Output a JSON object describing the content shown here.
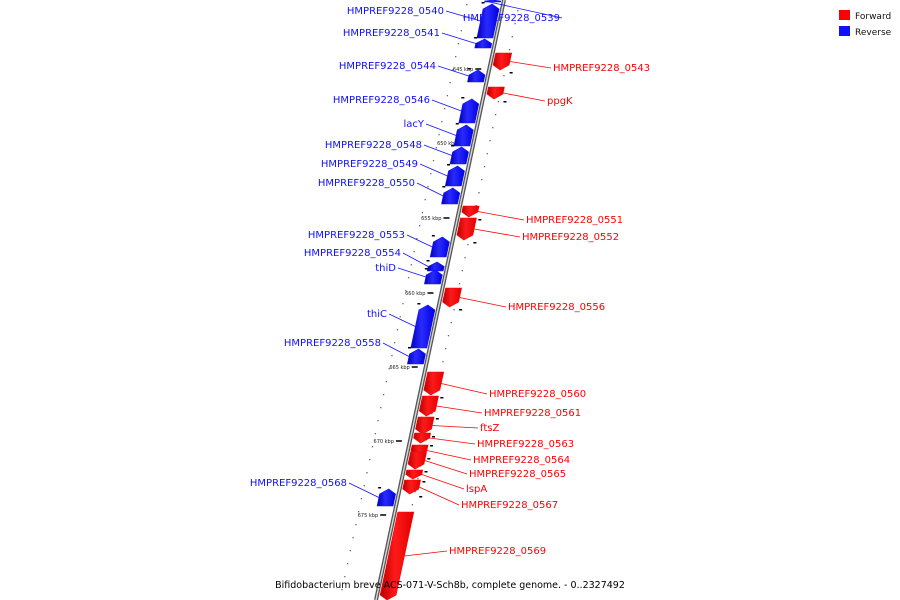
{
  "caption": "Bifidobacterium breve ACS-071-V-Sch8b, complete genome. - 0..2327492",
  "legend": {
    "forward": {
      "label": "Forward",
      "color": "#ff0000"
    },
    "reverse": {
      "label": "Reverse",
      "color": "#1010ff"
    }
  },
  "ticks": [
    "645 kbp",
    "650 kbp",
    "655 kbp",
    "660 kbp",
    "665 kbp",
    "670 kbp",
    "675 kbp"
  ],
  "genes": [
    {
      "name": "HMPREF9228_0539",
      "strand": "reverse"
    },
    {
      "name": "HMPREF9228_0540",
      "strand": "reverse"
    },
    {
      "name": "HMPREF9228_0541",
      "strand": "reverse"
    },
    {
      "name": "HMPREF9228_0543",
      "strand": "forward"
    },
    {
      "name": "HMPREF9228_0544",
      "strand": "reverse"
    },
    {
      "name": "ppgK",
      "strand": "forward"
    },
    {
      "name": "HMPREF9228_0546",
      "strand": "reverse"
    },
    {
      "name": "lacY",
      "strand": "reverse"
    },
    {
      "name": "HMPREF9228_0548",
      "strand": "reverse"
    },
    {
      "name": "HMPREF9228_0549",
      "strand": "reverse"
    },
    {
      "name": "HMPREF9228_0550",
      "strand": "reverse"
    },
    {
      "name": "HMPREF9228_0551",
      "strand": "forward"
    },
    {
      "name": "HMPREF9228_0552",
      "strand": "forward"
    },
    {
      "name": "HMPREF9228_0553",
      "strand": "reverse"
    },
    {
      "name": "HMPREF9228_0554",
      "strand": "reverse"
    },
    {
      "name": "thiD",
      "strand": "reverse"
    },
    {
      "name": "HMPREF9228_0556",
      "strand": "forward"
    },
    {
      "name": "thiC",
      "strand": "reverse"
    },
    {
      "name": "HMPREF9228_0558",
      "strand": "reverse"
    },
    {
      "name": "HMPREF9228_0560",
      "strand": "forward"
    },
    {
      "name": "HMPREF9228_0561",
      "strand": "forward"
    },
    {
      "name": "ftsZ",
      "strand": "forward"
    },
    {
      "name": "HMPREF9228_0563",
      "strand": "forward"
    },
    {
      "name": "HMPREF9228_0564",
      "strand": "forward"
    },
    {
      "name": "HMPREF9228_0565",
      "strand": "forward"
    },
    {
      "name": "lspA",
      "strand": "forward"
    },
    {
      "name": "HMPREF9228_0567",
      "strand": "forward"
    },
    {
      "name": "HMPREF9228_0568",
      "strand": "reverse"
    },
    {
      "name": "HMPREF9228_0569",
      "strand": "forward"
    }
  ]
}
